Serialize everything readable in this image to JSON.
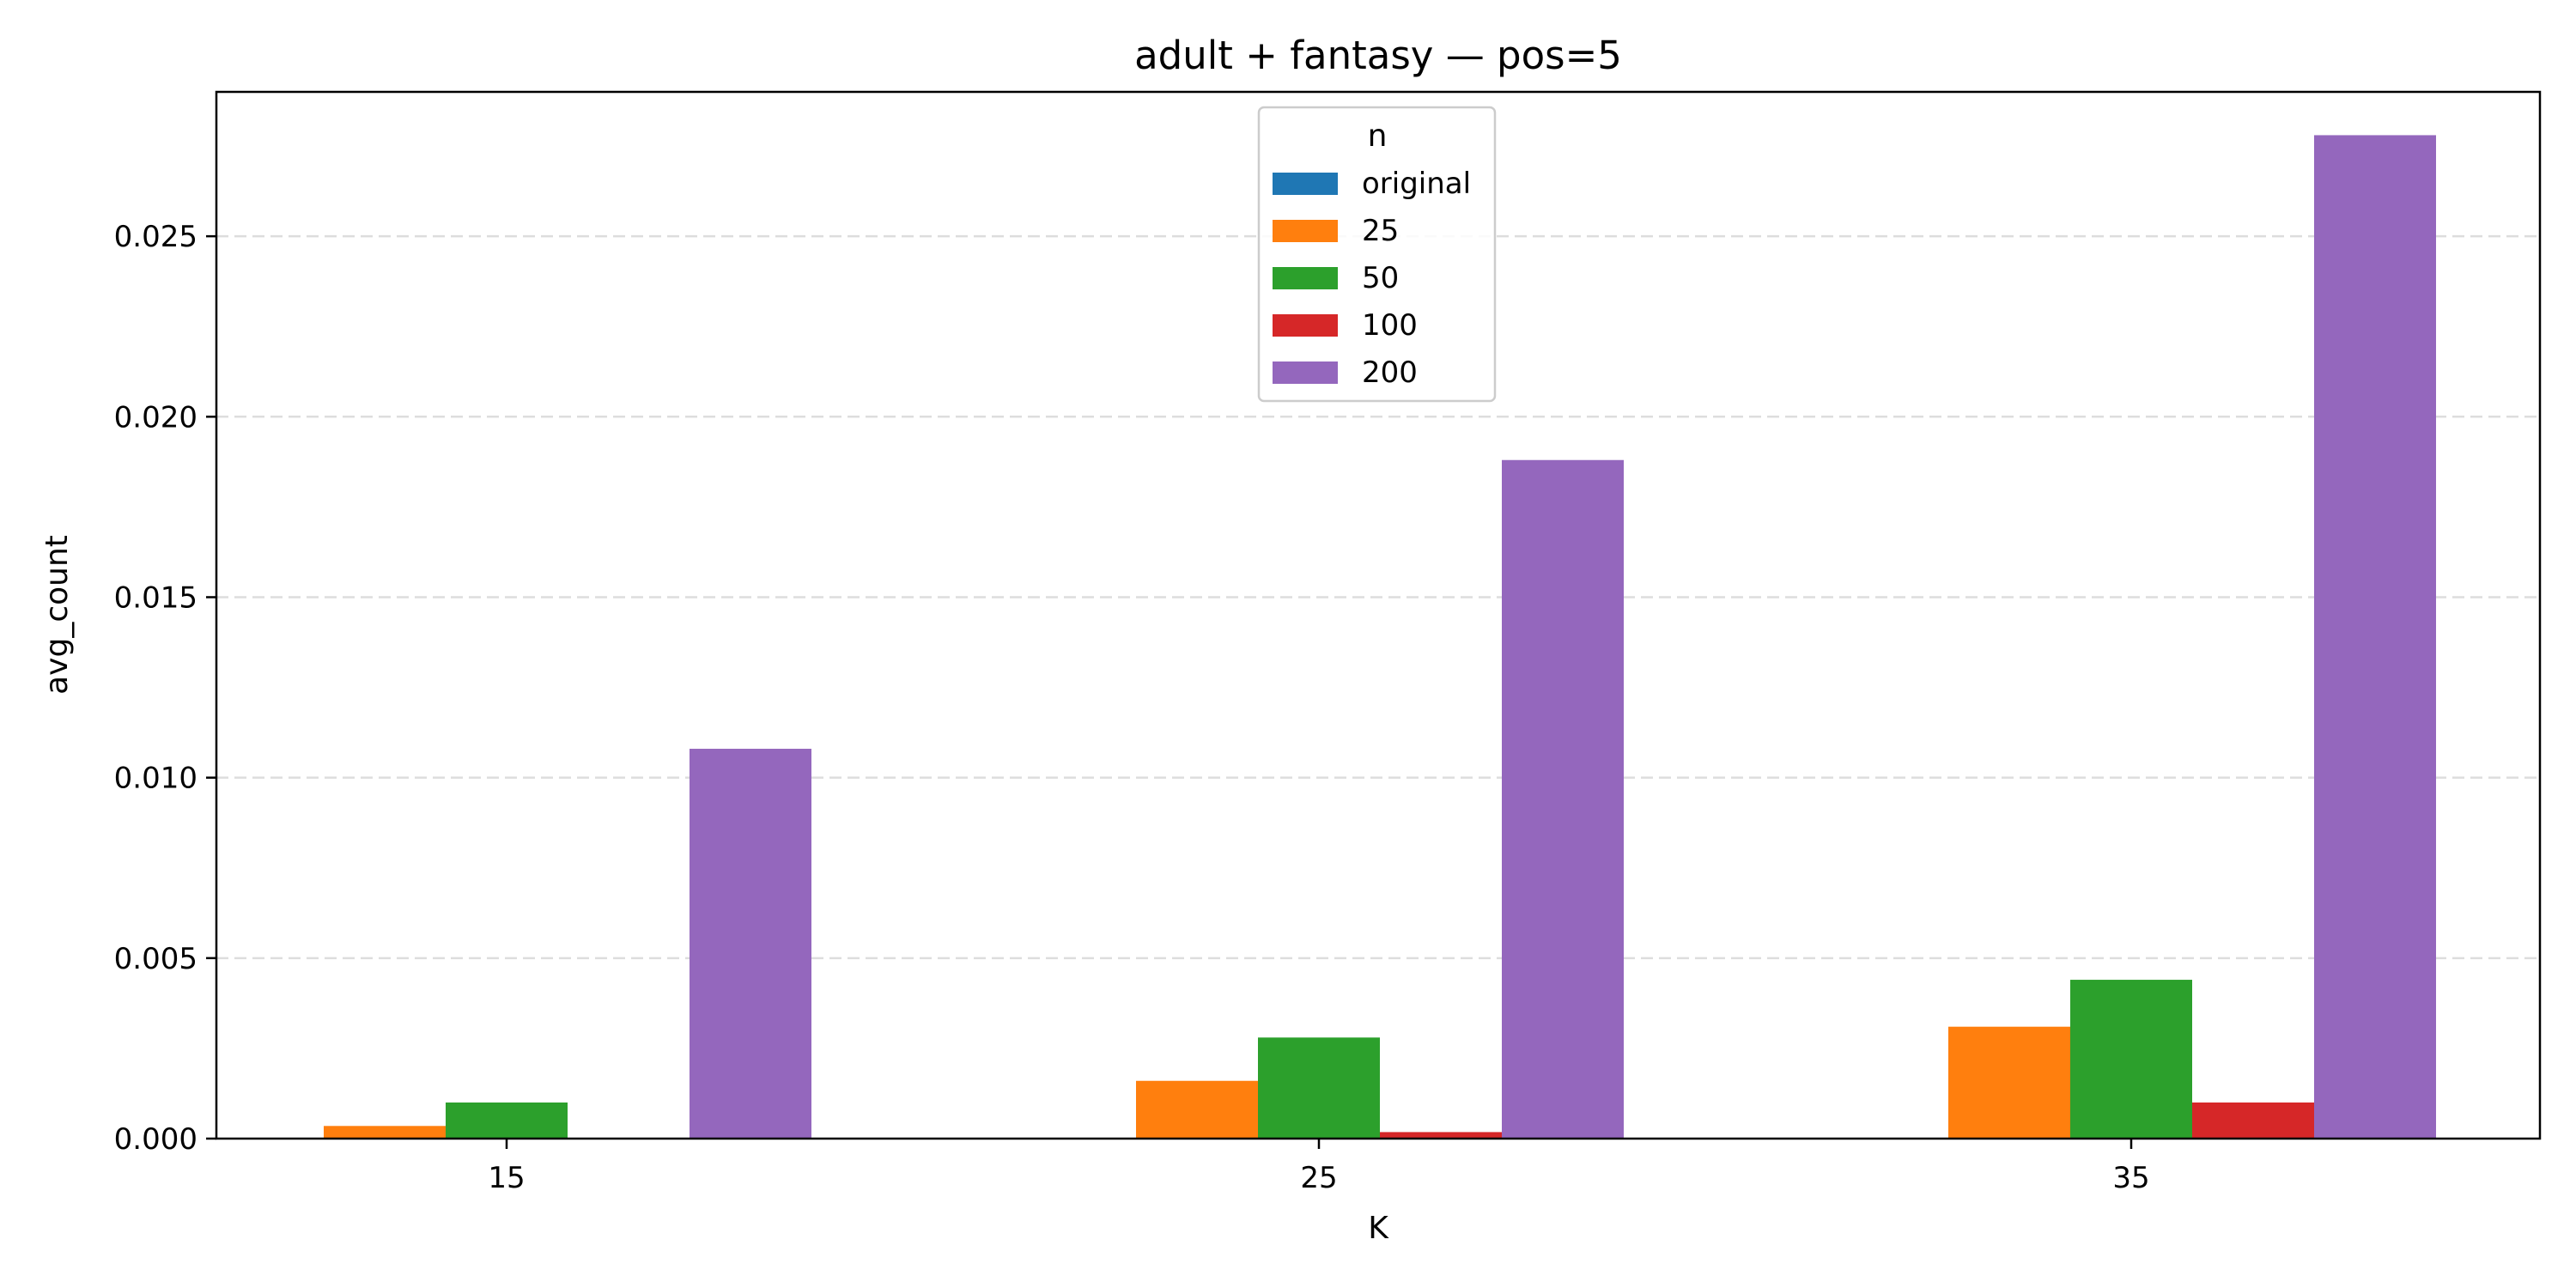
{
  "chart_data": {
    "type": "bar",
    "title": "adult + fantasy — pos=5",
    "xlabel": "K",
    "ylabel": "avg_count",
    "categories": [
      "15",
      "25",
      "35"
    ],
    "ylim": [
      0,
      0.029
    ],
    "yticks": [
      0.0,
      0.005,
      0.01,
      0.015,
      0.02,
      0.025
    ],
    "ytick_labels": [
      "0.000",
      "0.005",
      "0.010",
      "0.015",
      "0.020",
      "0.025"
    ],
    "grid": "y-dashed",
    "legend": {
      "title": "n",
      "placement": "top-center"
    },
    "series": [
      {
        "name": "original",
        "color": "#1f77b4",
        "values": [
          0,
          0,
          0
        ]
      },
      {
        "name": "25",
        "color": "#ff7f0e",
        "values": [
          0.00035,
          0.0016,
          0.0031
        ]
      },
      {
        "name": "50",
        "color": "#2ca02c",
        "values": [
          0.001,
          0.0028,
          0.0044
        ]
      },
      {
        "name": "100",
        "color": "#d62728",
        "values": [
          0,
          0.00018,
          0.001
        ]
      },
      {
        "name": "200",
        "color": "#9467bd",
        "values": [
          0.0108,
          0.0188,
          0.0278
        ]
      }
    ]
  }
}
